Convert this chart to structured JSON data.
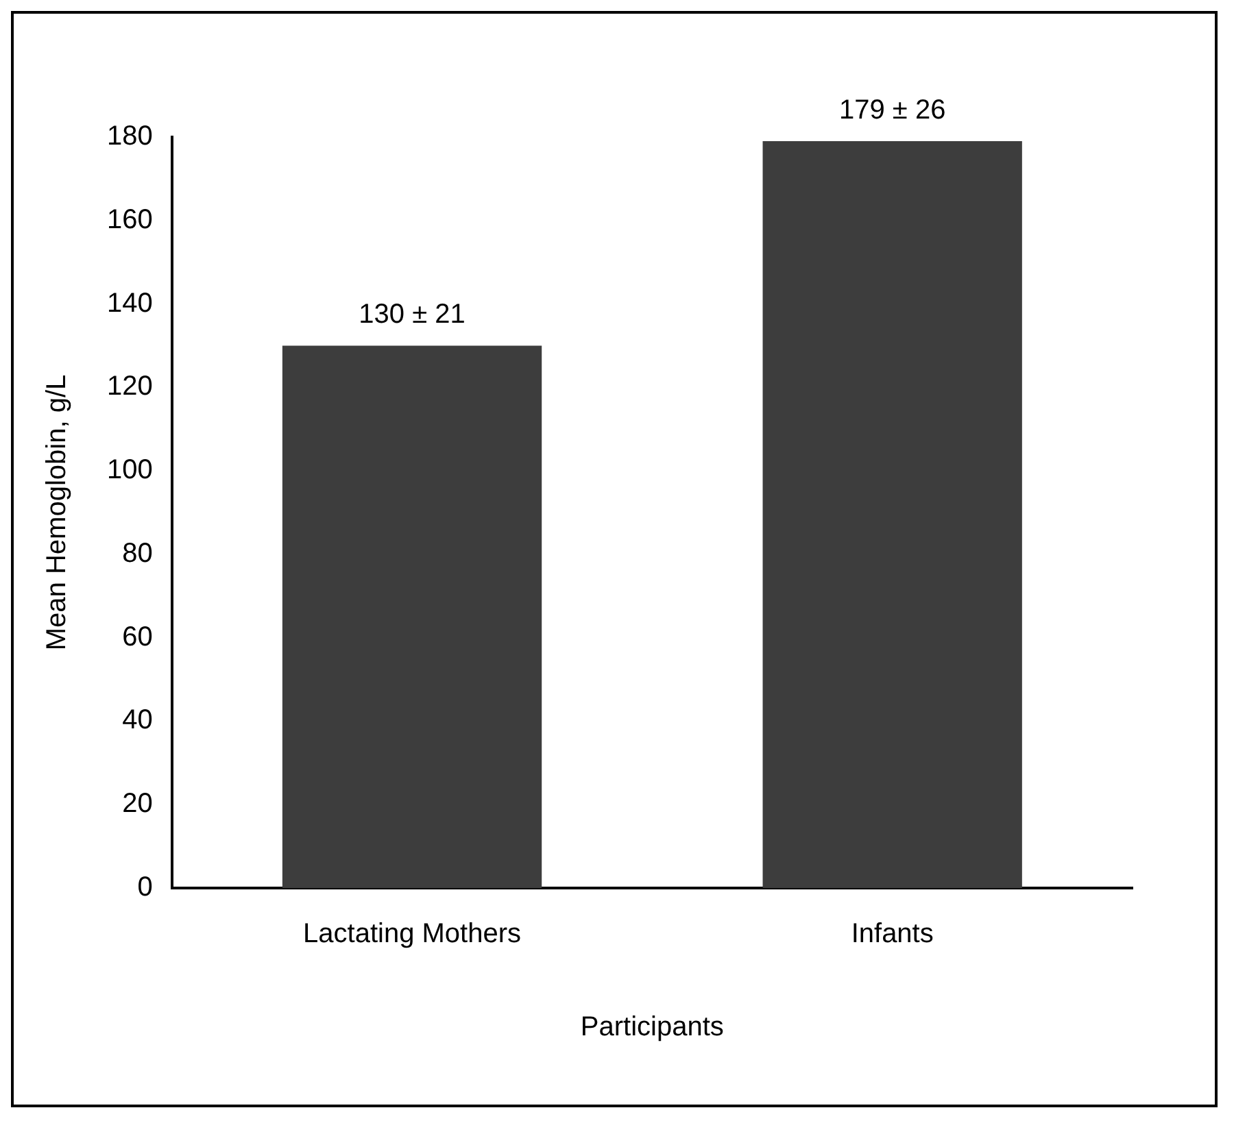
{
  "chart_data": {
    "type": "bar",
    "xlabel": "Participants",
    "ylabel": "Mean Hemoglobin, g/L",
    "categories": [
      "Lactating Mothers",
      "Infants"
    ],
    "values": [
      130,
      179
    ],
    "value_labels": [
      "130 ± 21",
      "179 ± 26"
    ],
    "color": "#3d3d3d",
    "ylim": [
      0,
      180
    ],
    "yticks": [
      0,
      20,
      40,
      60,
      80,
      100,
      120,
      140,
      160,
      180
    ],
    "grid": false,
    "legend": false
  }
}
